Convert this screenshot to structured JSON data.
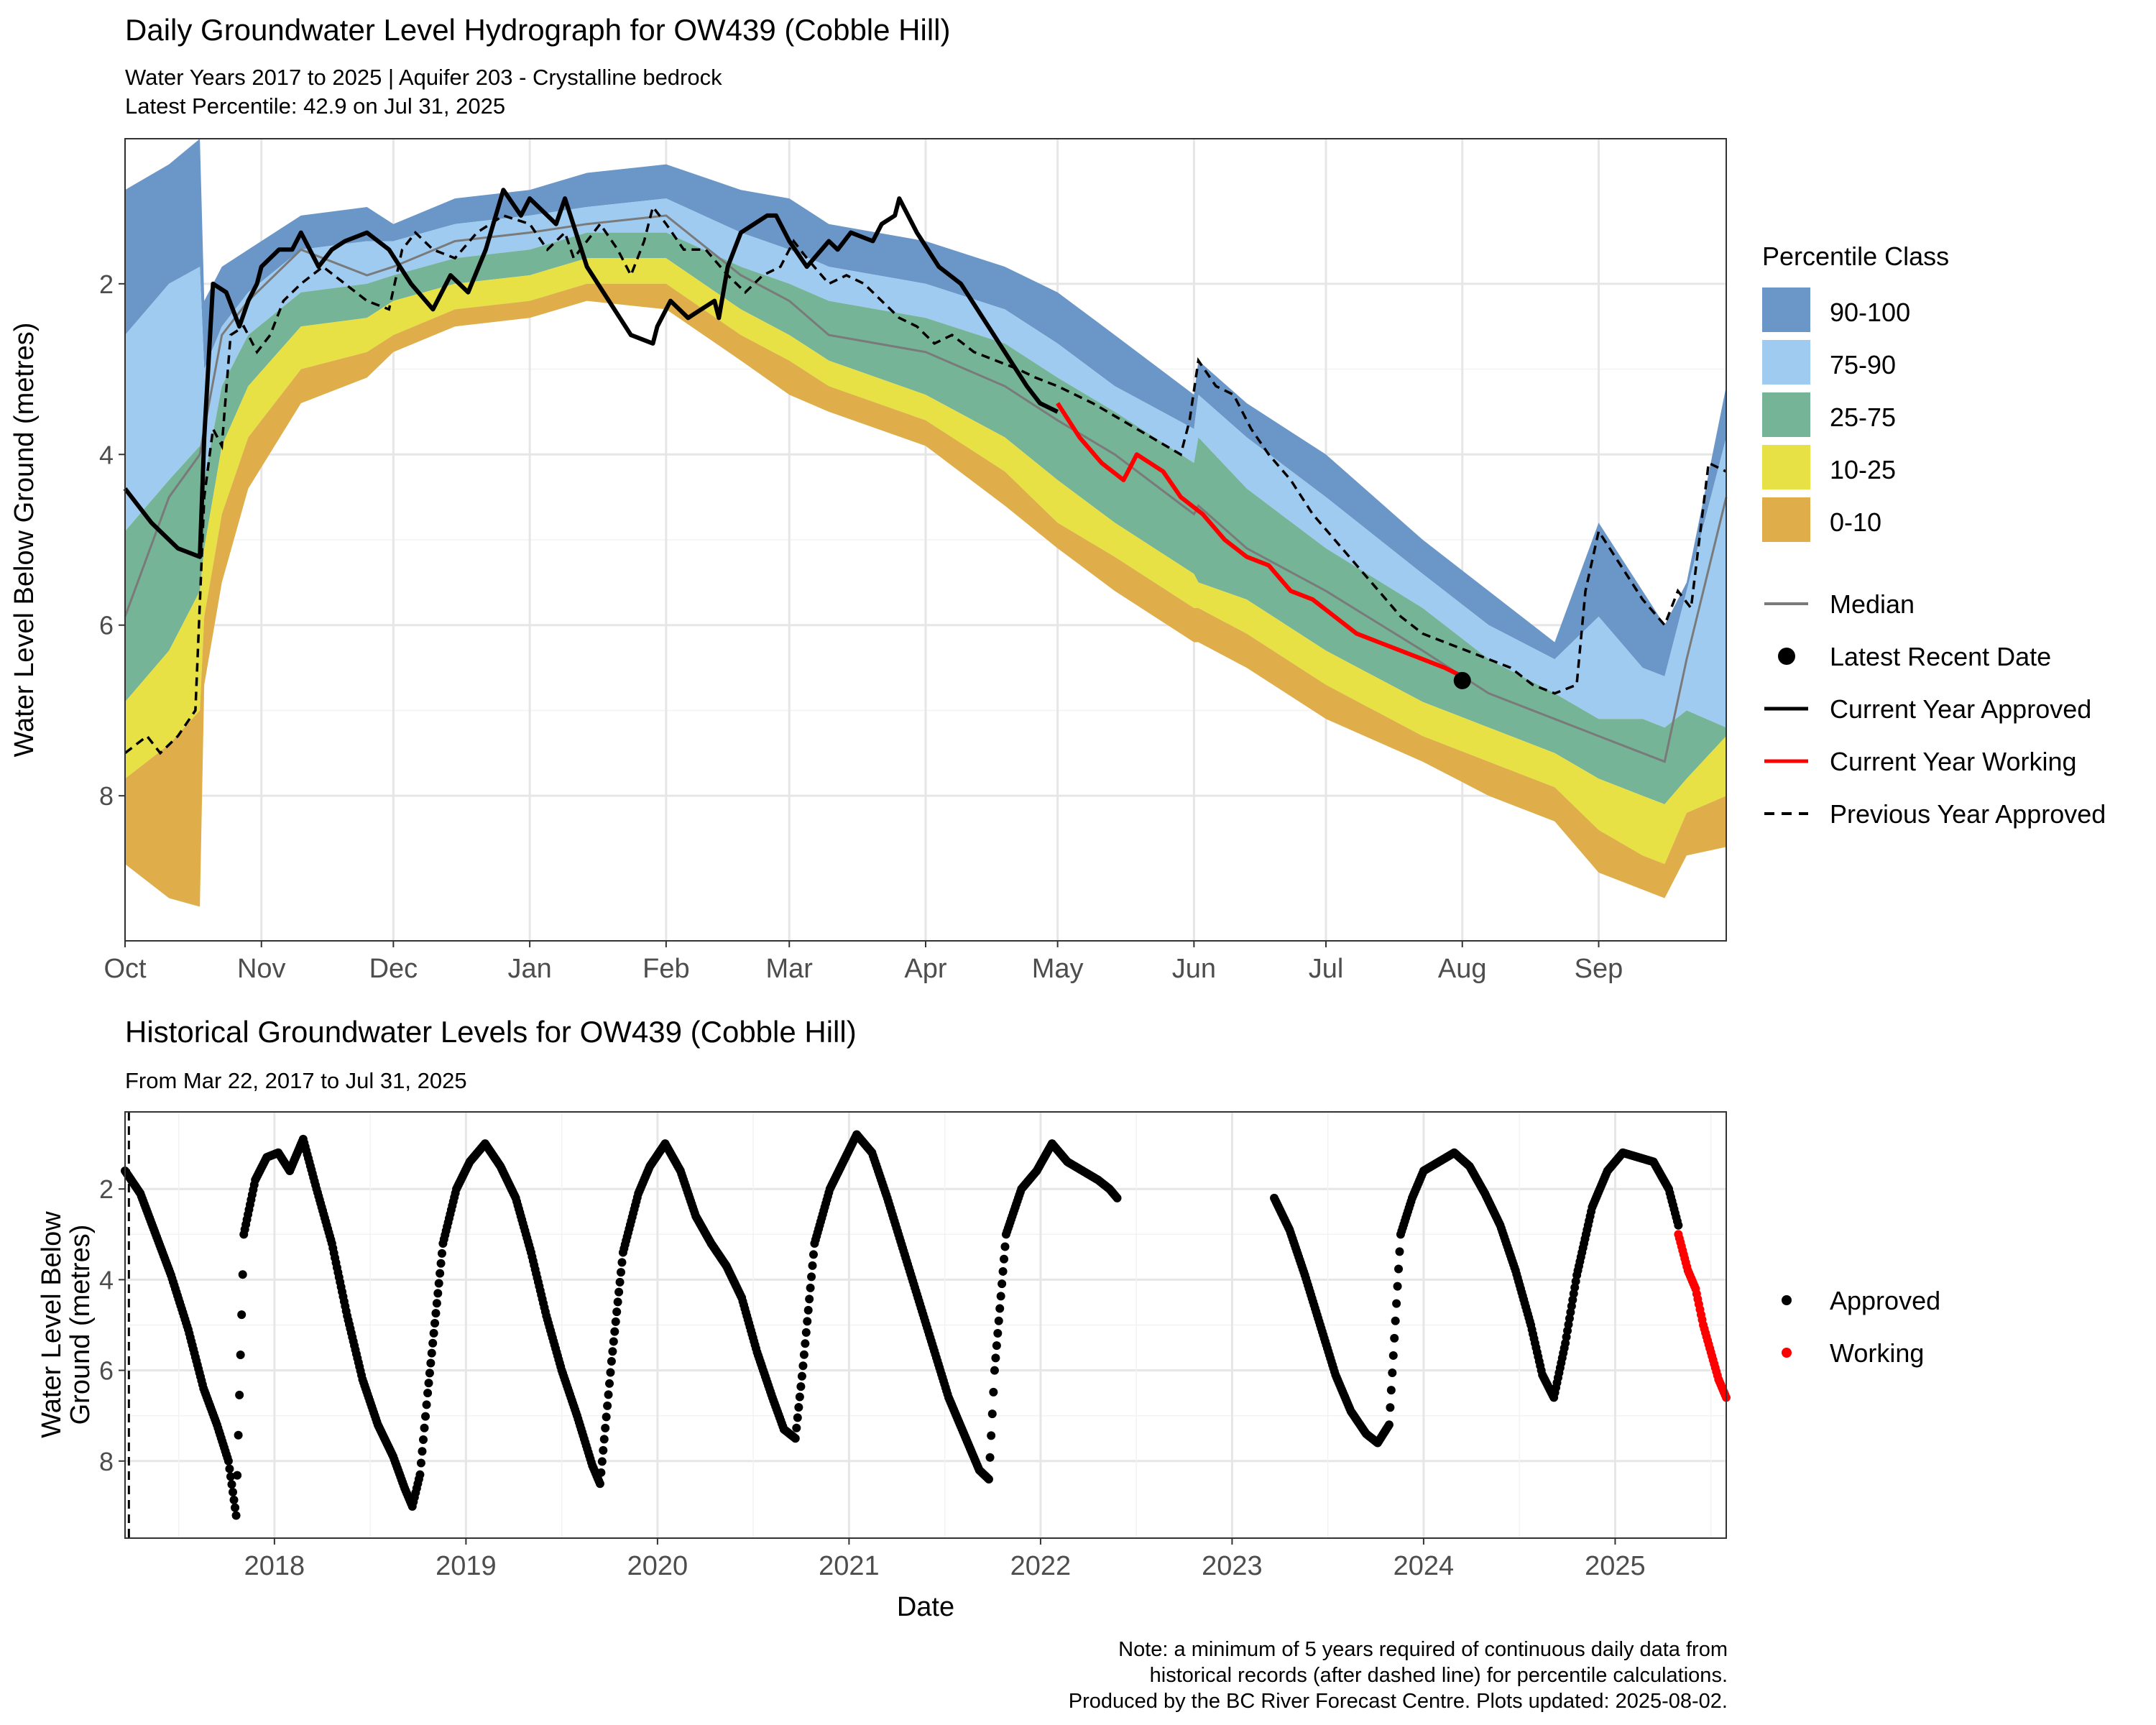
{
  "chart_data": [
    {
      "type": "area",
      "title": "Daily Groundwater Level Hydrograph for OW439 (Cobble Hill)",
      "subtitle": "Water Years 2017 to 2025 | Aquifer 203 - Crystalline bedrock",
      "subtitle2": "Latest Percentile: 42.9 on Jul 31, 2025",
      "ylabel": "Water Level Below Ground (metres)",
      "xlabel": "",
      "x_unit": "day of water year (0 = Oct 1)",
      "xlim": [
        0,
        364
      ],
      "ylim": [
        9.7,
        0.3
      ],
      "y_reversed": true,
      "grid": true,
      "y_ticks": [
        2,
        4,
        6,
        8
      ],
      "x_ticks": [
        {
          "label": "Oct",
          "day": 0
        },
        {
          "label": "Nov",
          "day": 31
        },
        {
          "label": "Dec",
          "day": 61
        },
        {
          "label": "Jan",
          "day": 92
        },
        {
          "label": "Feb",
          "day": 123
        },
        {
          "label": "Mar",
          "day": 151
        },
        {
          "label": "Apr",
          "day": 182
        },
        {
          "label": "May",
          "day": 212
        },
        {
          "label": "Jun",
          "day": 243
        },
        {
          "label": "Jul",
          "day": 273
        },
        {
          "label": "Aug",
          "day": 304
        },
        {
          "label": "Sep",
          "day": 335
        }
      ],
      "colors": {
        "c90_100": "#6b96c8",
        "c75_90": "#9fcbf0",
        "c25_75": "#75b496",
        "c10_25": "#e8e146",
        "c0_10": "#dfae4a",
        "median": "#7a7a7a",
        "approved": "#000000",
        "working": "#ff0000",
        "previous": "#000000"
      },
      "bands_days": [
        0,
        10,
        17,
        18,
        22,
        28,
        40,
        55,
        61,
        75,
        92,
        105,
        123,
        140,
        151,
        160,
        182,
        200,
        212,
        225,
        243,
        244,
        255,
        273,
        295,
        310,
        325,
        335,
        345,
        350,
        355,
        364
      ],
      "p_min": [
        0.9,
        0.6,
        0.3,
        2.2,
        1.8,
        1.6,
        1.2,
        1.1,
        1.3,
        1.0,
        0.9,
        0.7,
        0.6,
        0.9,
        1.0,
        1.3,
        1.5,
        1.8,
        2.1,
        2.6,
        3.3,
        2.9,
        3.4,
        4.0,
        5.0,
        5.6,
        6.2,
        4.8,
        5.6,
        6.0,
        5.5,
        3.2
      ],
      "p10": [
        2.6,
        2.0,
        1.8,
        3.0,
        2.5,
        2.1,
        1.6,
        1.5,
        1.5,
        1.3,
        1.2,
        1.1,
        1.0,
        1.4,
        1.6,
        1.8,
        2.0,
        2.3,
        2.7,
        3.2,
        3.7,
        3.3,
        3.8,
        4.5,
        5.4,
        6.0,
        6.4,
        5.9,
        6.5,
        6.6,
        5.6,
        3.8
      ],
      "p25": [
        4.9,
        4.3,
        3.9,
        4.3,
        3.2,
        2.6,
        2.1,
        2.0,
        1.9,
        1.7,
        1.6,
        1.4,
        1.4,
        1.8,
        2.0,
        2.2,
        2.4,
        2.7,
        3.1,
        3.5,
        4.1,
        3.8,
        4.4,
        5.1,
        5.8,
        6.4,
        6.8,
        7.1,
        7.1,
        7.2,
        7.0,
        7.2
      ],
      "p75": [
        6.9,
        6.3,
        5.6,
        5.1,
        3.9,
        3.2,
        2.5,
        2.4,
        2.2,
        2.0,
        1.9,
        1.7,
        1.7,
        2.3,
        2.6,
        2.9,
        3.3,
        3.8,
        4.3,
        4.8,
        5.4,
        5.5,
        5.7,
        6.3,
        6.9,
        7.2,
        7.5,
        7.8,
        8.0,
        8.1,
        7.8,
        7.3
      ],
      "p90": [
        7.8,
        7.4,
        7.0,
        5.9,
        4.7,
        3.8,
        3.0,
        2.8,
        2.6,
        2.3,
        2.2,
        2.0,
        2.0,
        2.6,
        2.9,
        3.2,
        3.6,
        4.2,
        4.8,
        5.2,
        5.8,
        5.8,
        6.1,
        6.7,
        7.3,
        7.6,
        7.9,
        8.4,
        8.7,
        8.8,
        8.2,
        8.0
      ],
      "p_max": [
        8.8,
        9.2,
        9.3,
        6.7,
        5.5,
        4.4,
        3.4,
        3.1,
        2.8,
        2.5,
        2.4,
        2.2,
        2.3,
        2.9,
        3.3,
        3.5,
        3.9,
        4.6,
        5.1,
        5.6,
        6.2,
        6.2,
        6.5,
        7.1,
        7.6,
        8.0,
        8.3,
        8.9,
        9.1,
        9.2,
        8.7,
        8.6
      ],
      "median": [
        5.9,
        4.5,
        4.0,
        3.7,
        2.6,
        2.2,
        1.6,
        1.9,
        1.8,
        1.5,
        1.4,
        1.3,
        1.2,
        1.9,
        2.2,
        2.6,
        2.8,
        3.2,
        3.6,
        4.0,
        4.7,
        4.6,
        5.1,
        5.6,
        6.3,
        6.8,
        7.1,
        7.3,
        7.5,
        7.6,
        6.4,
        4.5
      ],
      "series": [
        {
          "name": "Current Year Approved",
          "days": [
            0,
            6,
            12,
            17,
            18,
            20,
            23,
            26,
            28,
            30,
            31,
            35,
            38,
            40,
            44,
            47,
            50,
            55,
            60,
            65,
            70,
            74,
            78,
            82,
            86,
            90,
            92,
            98,
            100,
            105,
            110,
            115,
            120,
            121,
            124,
            128,
            131,
            134,
            135,
            137,
            140,
            143,
            146,
            148,
            151,
            155,
            160,
            162,
            165,
            170,
            172,
            175,
            176,
            180,
            185,
            190,
            195,
            200,
            205,
            208,
            212
          ],
          "level": [
            4.4,
            4.8,
            5.1,
            5.2,
            3.8,
            2.0,
            2.1,
            2.5,
            2.2,
            2.0,
            1.8,
            1.6,
            1.6,
            1.4,
            1.8,
            1.6,
            1.5,
            1.4,
            1.6,
            2.0,
            2.3,
            1.9,
            2.1,
            1.6,
            0.9,
            1.2,
            1.0,
            1.3,
            1.0,
            1.8,
            2.2,
            2.6,
            2.7,
            2.5,
            2.2,
            2.4,
            2.3,
            2.2,
            2.4,
            1.8,
            1.4,
            1.3,
            1.2,
            1.2,
            1.5,
            1.8,
            1.5,
            1.6,
            1.4,
            1.5,
            1.3,
            1.2,
            1.0,
            1.4,
            1.8,
            2.0,
            2.4,
            2.8,
            3.2,
            3.4,
            3.5
          ]
        },
        {
          "name": "Current Year Working",
          "days": [
            212,
            217,
            222,
            227,
            230,
            233,
            236,
            240,
            245,
            250,
            255,
            260,
            265,
            270,
            275,
            280,
            285,
            290,
            295,
            300,
            304
          ],
          "level": [
            3.4,
            3.8,
            4.1,
            4.3,
            4.0,
            4.1,
            4.2,
            4.5,
            4.7,
            5.0,
            5.2,
            5.3,
            5.6,
            5.7,
            5.9,
            6.1,
            6.2,
            6.3,
            6.4,
            6.5,
            6.6
          ]
        },
        {
          "name": "Previous Year Approved",
          "days": [
            0,
            5,
            8,
            12,
            16,
            18,
            20,
            22,
            24,
            27,
            30,
            33,
            36,
            40,
            45,
            50,
            55,
            60,
            63,
            66,
            70,
            75,
            80,
            86,
            92,
            96,
            100,
            102,
            108,
            112,
            115,
            118,
            120,
            123,
            127,
            132,
            137,
            141,
            145,
            149,
            152,
            155,
            160,
            164,
            168,
            172,
            176,
            180,
            184,
            188,
            193,
            198,
            203,
            207,
            212,
            220,
            230,
            240,
            242,
            244,
            248,
            252,
            256,
            260,
            265,
            270,
            275,
            280,
            285,
            290,
            295,
            300,
            305,
            310,
            315,
            320,
            325,
            330,
            332,
            335,
            340,
            345,
            350,
            353,
            356,
            360,
            364
          ],
          "level": [
            7.5,
            7.3,
            7.5,
            7.3,
            7.0,
            4.5,
            3.7,
            3.9,
            2.6,
            2.5,
            2.8,
            2.6,
            2.2,
            2.0,
            1.8,
            2.0,
            2.2,
            2.3,
            1.6,
            1.4,
            1.6,
            1.7,
            1.4,
            1.2,
            1.3,
            1.6,
            1.4,
            1.7,
            1.3,
            1.6,
            1.9,
            1.5,
            1.1,
            1.3,
            1.6,
            1.6,
            1.9,
            2.1,
            1.9,
            1.8,
            1.5,
            1.7,
            2.0,
            1.9,
            2.0,
            2.2,
            2.4,
            2.5,
            2.7,
            2.6,
            2.8,
            2.9,
            3.0,
            3.1,
            3.2,
            3.4,
            3.7,
            4.0,
            3.6,
            2.9,
            3.2,
            3.3,
            3.7,
            4.0,
            4.3,
            4.7,
            5.0,
            5.3,
            5.6,
            5.9,
            6.1,
            6.2,
            6.3,
            6.4,
            6.5,
            6.7,
            6.8,
            6.7,
            5.6,
            4.9,
            5.3,
            5.7,
            6.0,
            5.6,
            5.8,
            4.1,
            4.2
          ]
        }
      ],
      "latest_point": {
        "day": 304,
        "level": 6.65
      },
      "legend": {
        "title": "Percentile Class",
        "classes": [
          "90-100",
          "75-90",
          "25-75",
          "10-25",
          "0-10"
        ],
        "lines": [
          "Median",
          "Latest Recent Date",
          "Current Year Approved",
          "Current Year Working",
          "Previous Year Approved"
        ],
        "placement": "right"
      }
    },
    {
      "type": "scatter",
      "title": "Historical Groundwater Levels for OW439 (Cobble Hill)",
      "subtitle": "From Mar 22, 2017 to Jul 31, 2025",
      "xlabel": "Date",
      "ylabel_line1": "Water Level Below",
      "ylabel_line2": "Ground (metres)",
      "x_unit": "decimal year",
      "xlim": [
        2017.22,
        2025.58
      ],
      "ylim": [
        9.7,
        0.3
      ],
      "y_reversed": true,
      "grid": true,
      "y_ticks": [
        2,
        4,
        6,
        8
      ],
      "x_ticks": [
        "2018",
        "2019",
        "2020",
        "2021",
        "2022",
        "2023",
        "2024",
        "2025"
      ],
      "min_record_line_year": 2017.24,
      "approved": {
        "x": [
          2017.22,
          2017.3,
          2017.38,
          2017.46,
          2017.55,
          2017.63,
          2017.7,
          2017.76,
          2017.8,
          2017.84,
          2017.9,
          2017.96,
          2018.02,
          2018.08,
          2018.15,
          2018.22,
          2018.3,
          2018.38,
          2018.46,
          2018.54,
          2018.62,
          2018.68,
          2018.72,
          2018.76,
          2018.8,
          2018.88,
          2018.95,
          2019.02,
          2019.1,
          2019.18,
          2019.26,
          2019.34,
          2019.42,
          2019.5,
          2019.58,
          2019.66,
          2019.7,
          2019.76,
          2019.82,
          2019.9,
          2019.96,
          2020.04,
          2020.12,
          2020.2,
          2020.28,
          2020.36,
          2020.44,
          2020.52,
          2020.6,
          2020.66,
          2020.72,
          2020.76,
          2020.82,
          2020.9,
          2020.97,
          2021.04,
          2021.12,
          2021.2,
          2021.28,
          2021.36,
          2021.44,
          2021.52,
          2021.6,
          2021.68,
          2021.73,
          2021.76,
          2021.82,
          2021.9,
          2021.98,
          2022.06,
          2022.14,
          2022.22,
          2022.3,
          2022.36,
          2022.4,
          2023.22,
          2023.3,
          2023.38,
          2023.46,
          2023.54,
          2023.62,
          2023.7,
          2023.76,
          2023.82,
          2023.88,
          2023.94,
          2024.0,
          2024.08,
          2024.16,
          2024.24,
          2024.32,
          2024.4,
          2024.48,
          2024.56,
          2024.62,
          2024.68,
          2024.74,
          2024.8,
          2024.88,
          2024.96,
          2025.04,
          2025.12,
          2025.2,
          2025.28,
          2025.33
        ],
        "y": [
          1.6,
          2.1,
          3.0,
          3.9,
          5.1,
          6.4,
          7.2,
          8.0,
          9.2,
          3.0,
          1.8,
          1.3,
          1.2,
          1.6,
          0.9,
          2.0,
          3.2,
          4.8,
          6.2,
          7.2,
          7.9,
          8.6,
          9.0,
          8.3,
          6.5,
          3.2,
          2.0,
          1.4,
          1.0,
          1.5,
          2.2,
          3.4,
          4.8,
          6.0,
          7.0,
          8.1,
          8.5,
          5.8,
          3.4,
          2.1,
          1.5,
          1.0,
          1.6,
          2.6,
          3.2,
          3.7,
          4.4,
          5.6,
          6.6,
          7.3,
          7.5,
          5.9,
          3.2,
          2.0,
          1.4,
          0.8,
          1.2,
          2.2,
          3.3,
          4.4,
          5.5,
          6.6,
          7.4,
          8.2,
          8.4,
          6.0,
          3.0,
          2.0,
          1.6,
          1.0,
          1.4,
          1.6,
          1.8,
          2.0,
          2.2,
          2.2,
          2.9,
          3.9,
          5.0,
          6.1,
          6.9,
          7.4,
          7.6,
          7.2,
          3.0,
          2.2,
          1.6,
          1.4,
          1.2,
          1.5,
          2.1,
          2.8,
          3.8,
          5.0,
          6.1,
          6.6,
          5.4,
          3.9,
          2.4,
          1.6,
          1.2,
          1.3,
          1.4,
          2.0,
          2.8
        ]
      },
      "working": {
        "x": [
          2025.33,
          2025.38,
          2025.42,
          2025.46,
          2025.5,
          2025.54,
          2025.58
        ],
        "y": [
          3.0,
          3.8,
          4.2,
          5.0,
          5.6,
          6.2,
          6.6
        ]
      },
      "legend": {
        "entries": [
          "Approved",
          "Working"
        ],
        "placement": "right"
      }
    }
  ],
  "note": {
    "line1": "Note: a minimum of 5 years required of continuous daily data from",
    "line2": "historical records (after dashed line) for percentile calculations.",
    "line3": "Produced by the BC River Forecast Centre. Plots updated: 2025-08-02."
  }
}
